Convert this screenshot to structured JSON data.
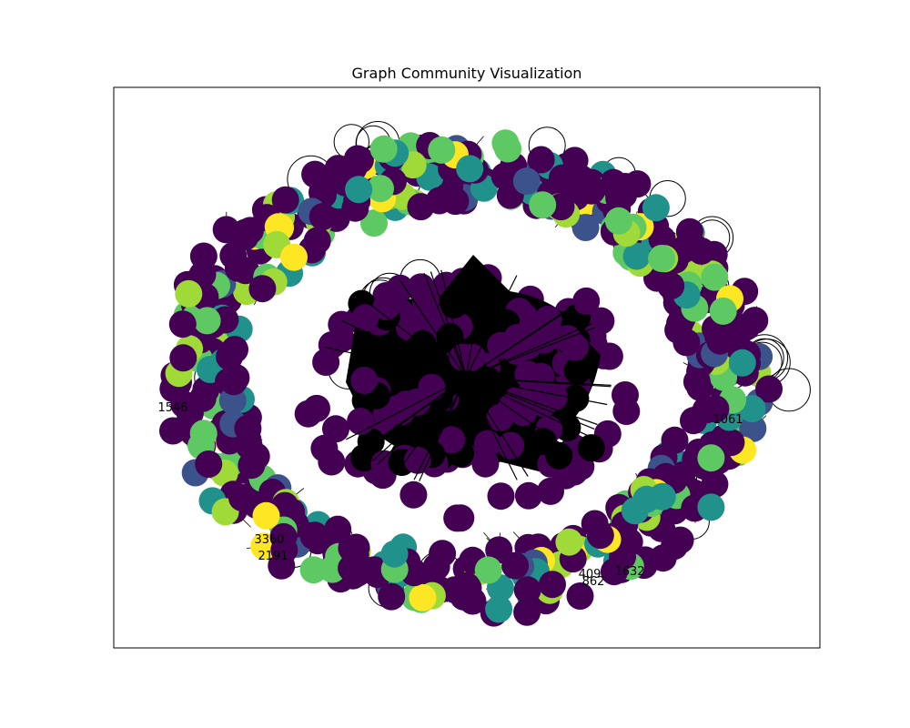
{
  "figure": {
    "title": "Graph Community Visualization"
  },
  "legend_colors": {
    "community_palette": [
      "#440154",
      "#3b528b",
      "#21918c",
      "#5ec962",
      "#a0da39",
      "#fde725"
    ],
    "node_label_color": "#000000",
    "edge_color": "#000000"
  },
  "visible_node_labels": [
    "1061",
    "862",
    "409",
    "2191",
    "1632",
    "3360",
    "1546"
  ]
}
